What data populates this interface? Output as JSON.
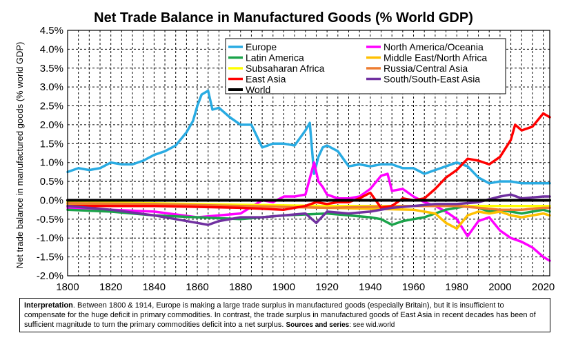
{
  "chart_data": {
    "type": "line",
    "title": "Net Trade Balance in Manufactured Goods (% World GDP)",
    "ylabel": "Net trade balance in manufactured goods (% world GDP)",
    "xlabel": "",
    "xlim": [
      1800,
      2023
    ],
    "ylim": [
      -2.0,
      4.5
    ],
    "x_ticks": [
      "1800",
      "1820",
      "1840",
      "1860",
      "1880",
      "1900",
      "1920",
      "1940",
      "1960",
      "1980",
      "2000",
      "2020"
    ],
    "y_ticks": [
      "-2.0%",
      "-1.5%",
      "-1.0%",
      "-0.5%",
      "0.0%",
      "0.5%",
      "1.0%",
      "1.5%",
      "2.0%",
      "2.5%",
      "3.0%",
      "3.5%",
      "4.0%",
      "4.5%"
    ],
    "grid": true,
    "legend_position": "top",
    "series": [
      {
        "name": "Europe",
        "color": "#29abe2",
        "x": [
          1800,
          1805,
          1810,
          1815,
          1820,
          1825,
          1830,
          1835,
          1840,
          1845,
          1850,
          1855,
          1858,
          1860,
          1862,
          1865,
          1867,
          1870,
          1875,
          1880,
          1885,
          1890,
          1895,
          1900,
          1905,
          1910,
          1912,
          1914,
          1916,
          1918,
          1920,
          1925,
          1930,
          1935,
          1940,
          1945,
          1950,
          1955,
          1960,
          1965,
          1970,
          1975,
          1980,
          1985,
          1990,
          1995,
          2000,
          2005,
          2010,
          2015,
          2020,
          2023
        ],
        "y": [
          0.75,
          0.85,
          0.8,
          0.85,
          1.0,
          0.95,
          0.95,
          1.05,
          1.2,
          1.3,
          1.45,
          1.8,
          2.1,
          2.5,
          2.8,
          2.9,
          2.4,
          2.45,
          2.2,
          2.0,
          2.0,
          1.4,
          1.5,
          1.5,
          1.45,
          1.85,
          2.05,
          0.7,
          1.15,
          1.4,
          1.45,
          1.3,
          0.9,
          0.95,
          0.9,
          0.95,
          0.95,
          0.85,
          0.85,
          0.7,
          0.8,
          0.9,
          1.0,
          0.9,
          0.6,
          0.45,
          0.5,
          0.5,
          0.45,
          0.45,
          0.45,
          0.45
        ]
      },
      {
        "name": "North America/Oceania",
        "color": "#ff00ff",
        "x": [
          1800,
          1820,
          1840,
          1860,
          1880,
          1890,
          1895,
          1900,
          1905,
          1910,
          1914,
          1916,
          1918,
          1920,
          1925,
          1930,
          1935,
          1940,
          1945,
          1948,
          1950,
          1955,
          1960,
          1965,
          1970,
          1975,
          1980,
          1985,
          1990,
          1995,
          2000,
          2005,
          2010,
          2015,
          2020,
          2023
        ],
        "y": [
          -0.2,
          -0.25,
          -0.3,
          -0.45,
          -0.35,
          0.0,
          -0.05,
          0.1,
          0.1,
          0.15,
          1.0,
          0.5,
          0.35,
          0.15,
          0.05,
          0.05,
          0.1,
          0.3,
          0.65,
          0.7,
          0.25,
          0.3,
          0.1,
          -0.05,
          -0.15,
          -0.3,
          -0.5,
          -0.95,
          -0.55,
          -0.45,
          -0.8,
          -1.0,
          -1.1,
          -1.25,
          -1.5,
          -1.6
        ]
      },
      {
        "name": "Latin America",
        "color": "#1aa34a",
        "x": [
          1800,
          1820,
          1840,
          1860,
          1880,
          1900,
          1920,
          1940,
          1945,
          1950,
          1955,
          1960,
          1965,
          1970,
          1975,
          1980,
          1985,
          1990,
          1995,
          2000,
          2005,
          2010,
          2015,
          2020,
          2023
        ],
        "y": [
          -0.25,
          -0.3,
          -0.4,
          -0.45,
          -0.5,
          -0.4,
          -0.35,
          -0.45,
          -0.5,
          -0.65,
          -0.55,
          -0.5,
          -0.45,
          -0.35,
          -0.25,
          -0.2,
          -0.15,
          -0.2,
          -0.3,
          -0.25,
          -0.3,
          -0.35,
          -0.3,
          -0.25,
          -0.3
        ]
      },
      {
        "name": "Middle East/North Africa",
        "color": "#ffc000",
        "x": [
          1800,
          1840,
          1880,
          1920,
          1960,
          1970,
          1975,
          1980,
          1985,
          1990,
          1995,
          2000,
          2005,
          2010,
          2015,
          2020,
          2023
        ],
        "y": [
          -0.1,
          -0.12,
          -0.15,
          -0.2,
          -0.25,
          -0.35,
          -0.6,
          -0.75,
          -0.4,
          -0.3,
          -0.35,
          -0.3,
          -0.4,
          -0.45,
          -0.4,
          -0.35,
          -0.4
        ]
      },
      {
        "name": "Subsaharan Africa",
        "color": "#ffff00",
        "x": [
          1800,
          1840,
          1880,
          1920,
          1960,
          1980,
          2000,
          2020,
          2023
        ],
        "y": [
          -0.05,
          -0.08,
          -0.12,
          -0.15,
          -0.15,
          -0.15,
          -0.15,
          -0.15,
          -0.15
        ]
      },
      {
        "name": "Russia/Central Asia",
        "color": "#ed7d31",
        "x": [
          1800,
          1840,
          1880,
          1920,
          1960,
          1980,
          1990,
          2000,
          2010,
          2020,
          2023
        ],
        "y": [
          -0.08,
          -0.1,
          -0.15,
          -0.2,
          -0.15,
          -0.15,
          -0.2,
          -0.25,
          -0.25,
          -0.2,
          -0.2
        ]
      },
      {
        "name": "East Asia",
        "color": "#ff0000",
        "x": [
          1800,
          1840,
          1880,
          1900,
          1910,
          1915,
          1920,
          1925,
          1930,
          1935,
          1940,
          1945,
          1950,
          1955,
          1960,
          1965,
          1970,
          1975,
          1980,
          1985,
          1990,
          1995,
          2000,
          2005,
          2007,
          2010,
          2015,
          2020,
          2023
        ],
        "y": [
          -0.15,
          -0.15,
          -0.2,
          -0.25,
          -0.15,
          -0.05,
          -0.1,
          -0.05,
          -0.05,
          0.05,
          0.2,
          -0.2,
          -0.15,
          0.05,
          0.0,
          0.05,
          0.3,
          0.6,
          0.8,
          1.1,
          1.05,
          0.95,
          1.15,
          1.6,
          2.0,
          1.85,
          1.95,
          2.3,
          2.2
        ]
      },
      {
        "name": "South/South-East Asia",
        "color": "#7030a0",
        "x": [
          1800,
          1820,
          1840,
          1850,
          1860,
          1865,
          1870,
          1880,
          1890,
          1900,
          1910,
          1915,
          1920,
          1930,
          1940,
          1950,
          1960,
          1970,
          1980,
          1990,
          2000,
          2005,
          2010,
          2020,
          2023
        ],
        "y": [
          -0.15,
          -0.25,
          -0.4,
          -0.5,
          -0.6,
          -0.65,
          -0.55,
          -0.45,
          -0.45,
          -0.4,
          -0.35,
          -0.6,
          -0.3,
          -0.35,
          -0.3,
          -0.2,
          -0.15,
          -0.1,
          -0.1,
          -0.05,
          0.1,
          0.15,
          0.05,
          0.1,
          0.1
        ]
      },
      {
        "name": "World",
        "color": "#000000",
        "x": [
          1800,
          2023
        ],
        "y": [
          0.0,
          0.0
        ]
      }
    ]
  },
  "interpretation": {
    "label": "Interpretation",
    "text": ". Between 1800 & 1914, Europe is making a large trade surplus in manufactured goods (especially Britain), but it is insufficient to compensate for the huge deficit in primary commodities. In contrast, the trade surplus in manufactured goods of East Asia in recent decades has been of sufficient magnitude to turn the primary commodities deficit into a net surplus. ",
    "sources_label": "Sources and series",
    "sources_text": ": see wid.world"
  }
}
